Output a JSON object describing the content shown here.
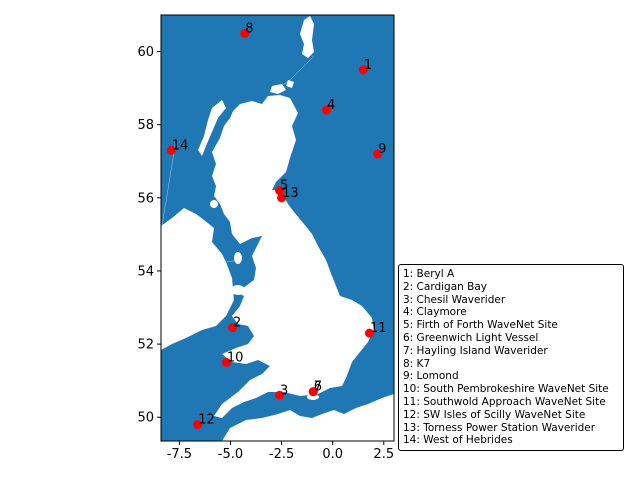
{
  "chart_data": {
    "type": "scatter",
    "title": "",
    "xlabel": "",
    "ylabel": "",
    "xlim": [
      -8.4,
      3.0
    ],
    "ylim": [
      49.35,
      61.0
    ],
    "x_ticks": [
      "-7.5",
      "-5.0",
      "-2.5",
      "0.0",
      "2.5"
    ],
    "x_tick_values": [
      -7.5,
      -5.0,
      -2.5,
      0.0,
      2.5
    ],
    "y_ticks": [
      "50",
      "52",
      "54",
      "56",
      "58",
      "60"
    ],
    "y_tick_values": [
      50,
      52,
      54,
      56,
      58,
      60
    ],
    "grid": false,
    "legend_placement": "outside-right-bottom",
    "colors": {
      "sea": "#1f77b4",
      "land": "#ffffff",
      "marker": "#ff0000"
    },
    "points": [
      {
        "label": "1",
        "lon": 1.5,
        "lat": 59.5
      },
      {
        "label": "2",
        "lon": -4.9,
        "lat": 52.45
      },
      {
        "label": "3",
        "lon": -2.6,
        "lat": 50.6
      },
      {
        "label": "4",
        "lon": -0.3,
        "lat": 58.4
      },
      {
        "label": "5",
        "lon": -2.6,
        "lat": 56.2
      },
      {
        "label": "6",
        "lon": -0.95,
        "lat": 50.7
      },
      {
        "label": "7",
        "lon": -0.95,
        "lat": 50.7
      },
      {
        "label": "8",
        "lon": -4.3,
        "lat": 60.5
      },
      {
        "label": "9",
        "lon": 2.2,
        "lat": 57.2
      },
      {
        "label": "10",
        "lon": -5.2,
        "lat": 51.5
      },
      {
        "label": "11",
        "lon": 1.8,
        "lat": 52.3
      },
      {
        "label": "12",
        "lon": -6.6,
        "lat": 49.8
      },
      {
        "label": "13",
        "lon": -2.5,
        "lat": 56.0
      },
      {
        "label": "14",
        "lon": -7.9,
        "lat": 57.3
      }
    ],
    "legend": [
      "1: Beryl A",
      "2: Cardigan Bay",
      "3: Chesil Waverider",
      "4: Claymore",
      "5: Firth of Forth WaveNet Site",
      "6: Greenwich Light Vessel",
      "7: Hayling Island Waverider",
      "8: K7",
      "9: Lomond",
      "10: South Pembrokeshire WaveNet Site",
      "11: Southwold Approach WaveNet Site",
      "12: SW Isles of Scilly WaveNet Site",
      "13: Torness Power Station Waverider",
      "14: West of Hebrides"
    ]
  }
}
